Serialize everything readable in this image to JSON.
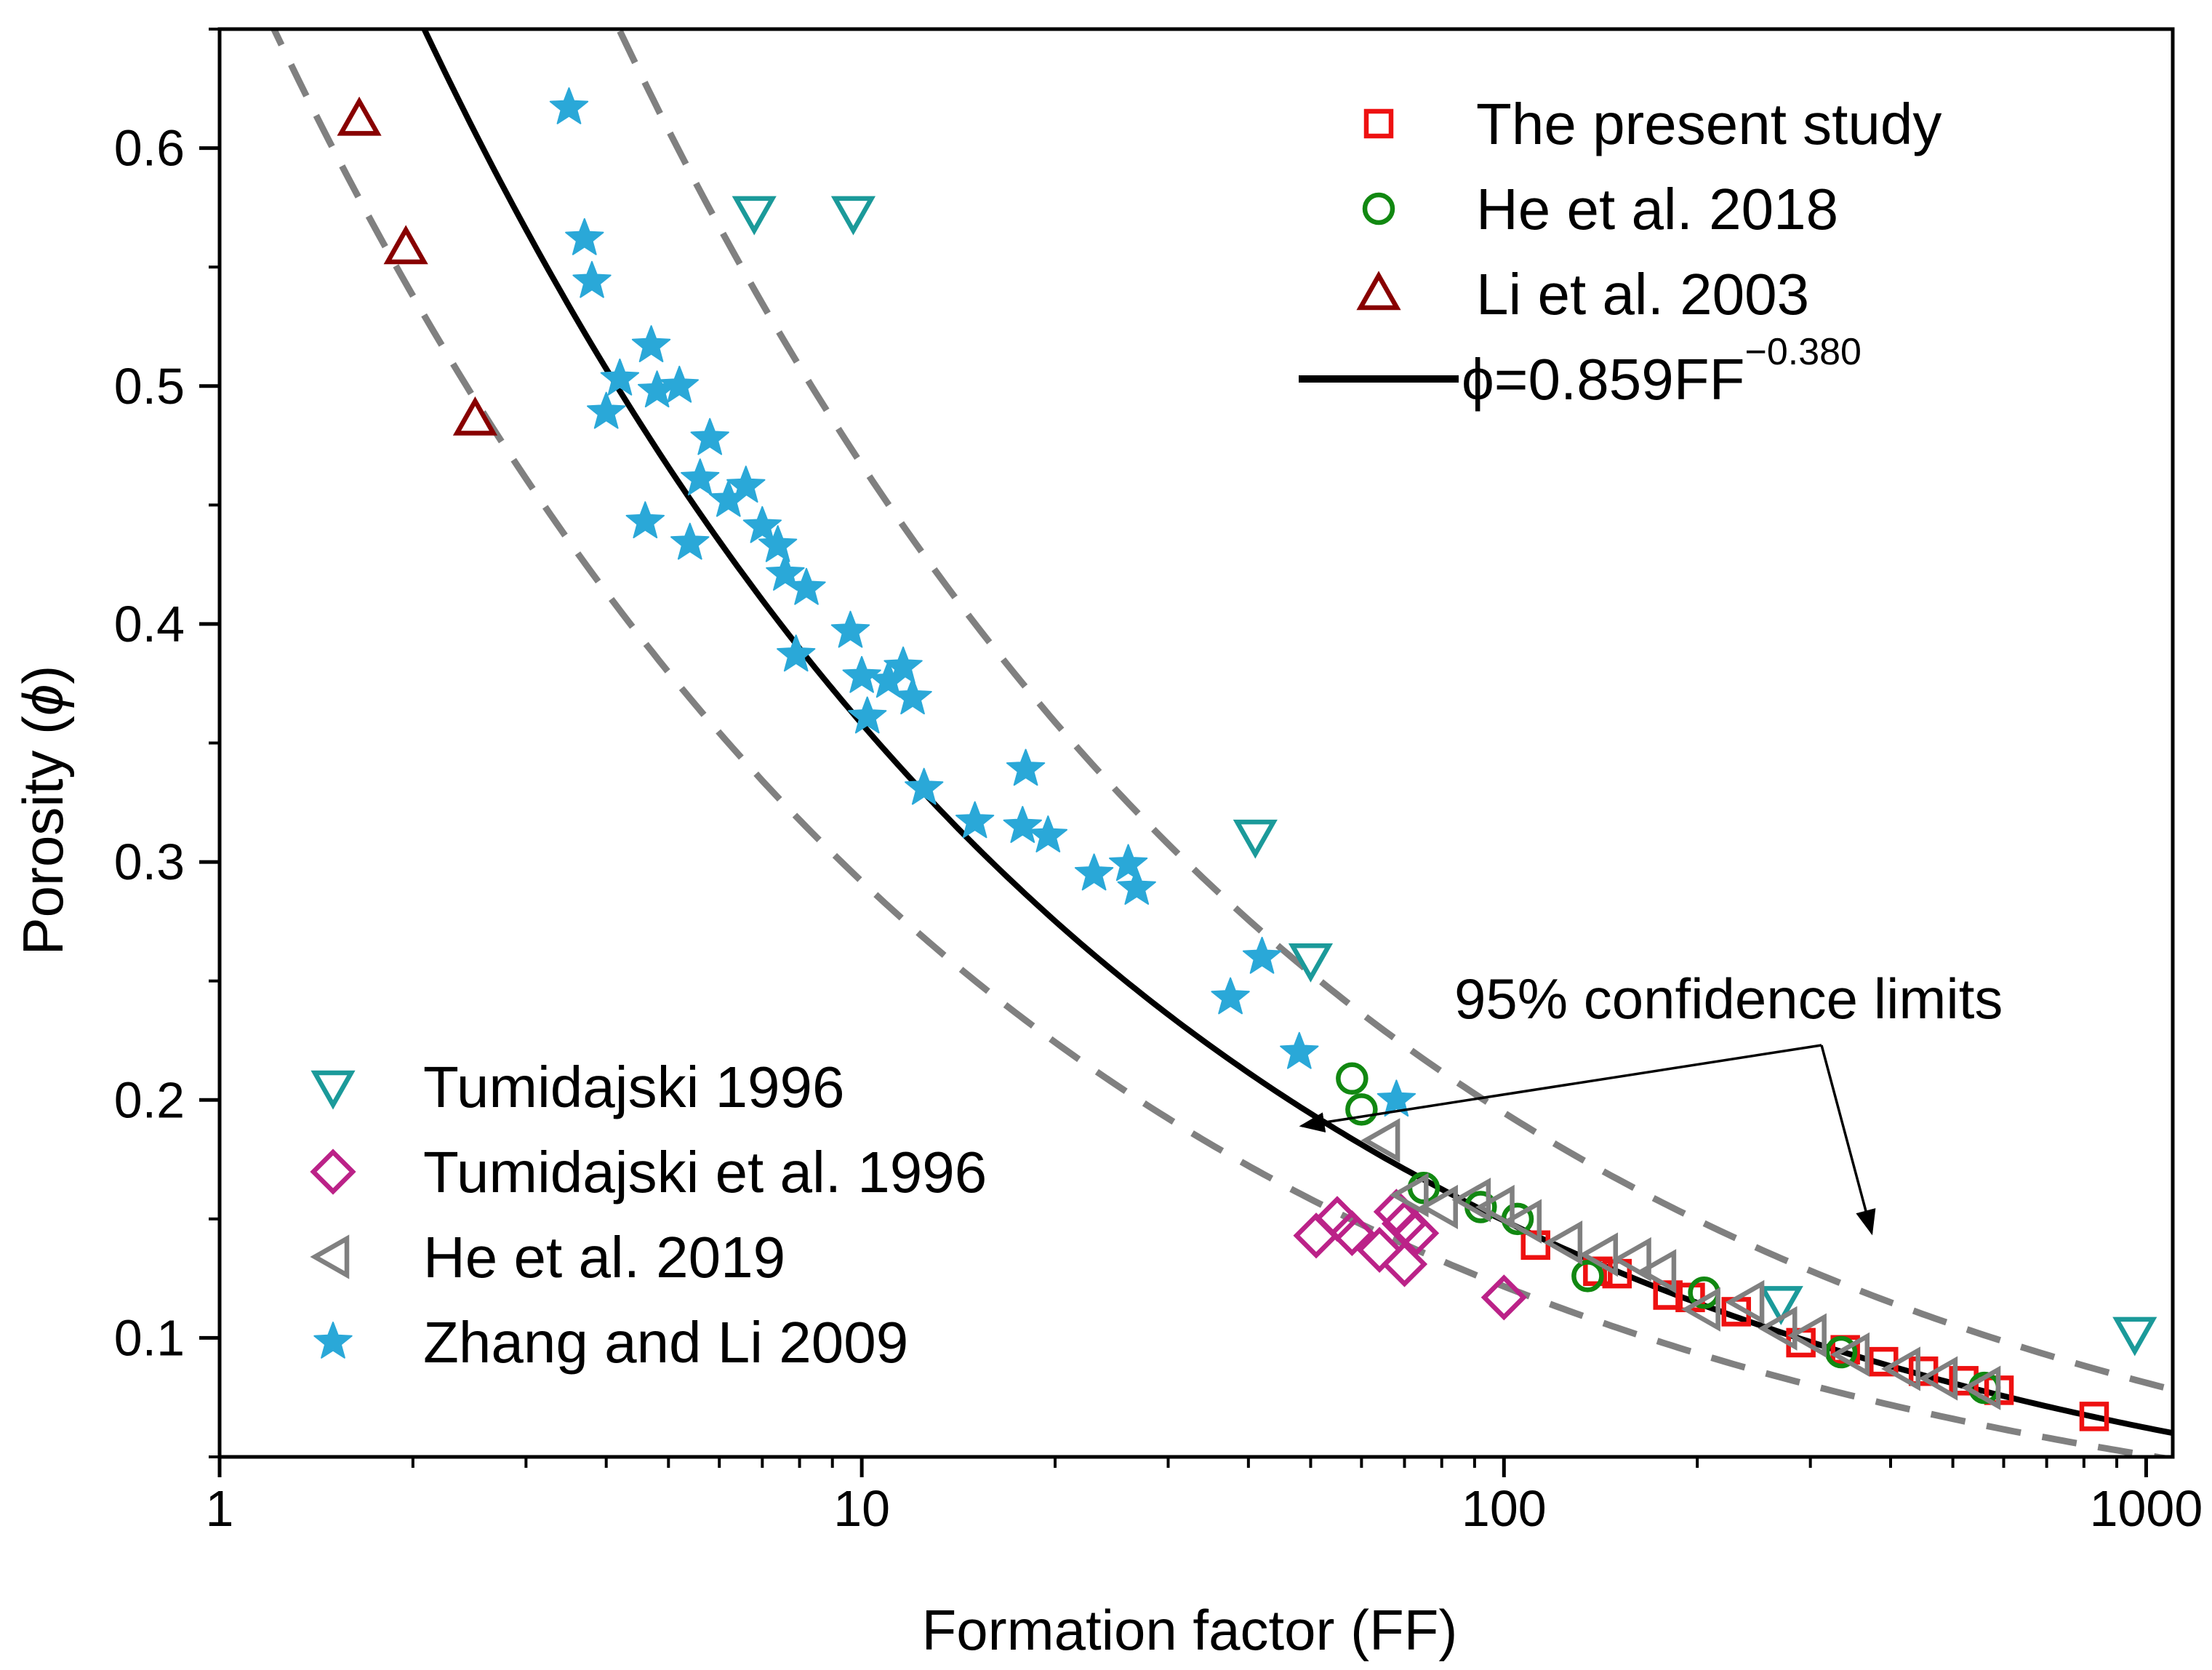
{
  "chart_data": {
    "type": "scatter",
    "xscale": "log",
    "xlim": [
      1,
      1100
    ],
    "ylim": [
      0.05,
      0.65
    ],
    "xlabel": "Formation factor (FF)",
    "ylabel_prefix": "Porosity (",
    "ylabel_symbol": "ϕ",
    "ylabel_suffix": ")",
    "x_ticks": [
      {
        "value": 1,
        "label": "1"
      },
      {
        "value": 10,
        "label": "10"
      },
      {
        "value": 100,
        "label": "100"
      },
      {
        "value": 1000,
        "label": "1000"
      }
    ],
    "y_ticks": [
      {
        "value": 0.1,
        "label": "0.1"
      },
      {
        "value": 0.2,
        "label": "0.2"
      },
      {
        "value": 0.3,
        "label": "0.3"
      },
      {
        "value": 0.4,
        "label": "0.4"
      },
      {
        "value": 0.5,
        "label": "0.5"
      },
      {
        "value": 0.6,
        "label": "0.6"
      }
    ],
    "fit": {
      "a": 0.859,
      "b": -0.38,
      "label_main": "ϕ=0.859FF",
      "label_exp": "−0.380",
      "color": "#000000"
    },
    "confidence_upper": {
      "a": 1.12,
      "b": -0.38
    },
    "confidence_lower": {
      "a": 0.7,
      "b": -0.38
    },
    "confidence_color": "#808080",
    "annotation": "95% confidence limits",
    "series": [
      {
        "name": "The present study",
        "marker": "square",
        "color": "#ee1111",
        "points": [
          [
            112,
            0.139
          ],
          [
            140,
            0.128
          ],
          [
            150,
            0.127
          ],
          [
            180,
            0.118
          ],
          [
            195,
            0.117
          ],
          [
            230,
            0.111
          ],
          [
            290,
            0.098
          ],
          [
            340,
            0.095
          ],
          [
            390,
            0.09
          ],
          [
            450,
            0.086
          ],
          [
            520,
            0.082
          ],
          [
            590,
            0.078
          ],
          [
            830,
            0.067
          ]
        ]
      },
      {
        "name": "He et al. 2018",
        "marker": "circle",
        "color": "#118811",
        "points": [
          [
            58,
            0.209
          ],
          [
            60,
            0.196
          ],
          [
            75,
            0.163
          ],
          [
            92,
            0.155
          ],
          [
            105,
            0.15
          ],
          [
            135,
            0.126
          ],
          [
            205,
            0.119
          ],
          [
            335,
            0.094
          ],
          [
            560,
            0.079
          ]
        ]
      },
      {
        "name": "Li et al. 2003",
        "marker": "triangle-up",
        "color": "#880000",
        "points": [
          [
            1.65,
            0.612
          ],
          [
            1.95,
            0.558
          ],
          [
            2.5,
            0.486
          ]
        ]
      },
      {
        "name": "Tumidajski 1996",
        "marker": "triangle-down",
        "color": "#1b9a9a",
        "points": [
          [
            6.8,
            0.573
          ],
          [
            9.7,
            0.573
          ],
          [
            41,
            0.311
          ],
          [
            50,
            0.259
          ],
          [
            270,
            0.115
          ],
          [
            960,
            0.102
          ]
        ]
      },
      {
        "name": "Tumidajski et al. 1996",
        "marker": "diamond",
        "color": "#bb2288",
        "points": [
          [
            51,
            0.143
          ],
          [
            55,
            0.15
          ],
          [
            58,
            0.144
          ],
          [
            64,
            0.137
          ],
          [
            68,
            0.153
          ],
          [
            70,
            0.148
          ],
          [
            73,
            0.144
          ],
          [
            70,
            0.131
          ],
          [
            100,
            0.117
          ]
        ]
      },
      {
        "name": "He et al. 2019",
        "marker": "triangle-left",
        "color": "#808080",
        "points": [
          [
            65,
            0.183
          ],
          [
            72,
            0.16
          ],
          [
            80,
            0.155
          ],
          [
            90,
            0.158
          ],
          [
            98,
            0.155
          ],
          [
            108,
            0.149
          ],
          [
            125,
            0.14
          ],
          [
            142,
            0.135
          ],
          [
            160,
            0.133
          ],
          [
            175,
            0.128
          ],
          [
            205,
            0.112
          ],
          [
            240,
            0.115
          ],
          [
            270,
            0.104
          ],
          [
            300,
            0.101
          ],
          [
            350,
            0.093
          ],
          [
            420,
            0.087
          ],
          [
            480,
            0.083
          ],
          [
            560,
            0.079
          ]
        ]
      },
      {
        "name": "Zhang and Li 2009",
        "marker": "star",
        "color": "#2aa8d8",
        "points": [
          [
            3.5,
            0.617
          ],
          [
            3.7,
            0.562
          ],
          [
            3.8,
            0.544
          ],
          [
            4.0,
            0.489
          ],
          [
            4.2,
            0.503
          ],
          [
            4.6,
            0.443
          ],
          [
            4.7,
            0.517
          ],
          [
            4.8,
            0.498
          ],
          [
            5.2,
            0.5
          ],
          [
            5.4,
            0.434
          ],
          [
            5.8,
            0.478
          ],
          [
            5.6,
            0.461
          ],
          [
            6.2,
            0.452
          ],
          [
            6.6,
            0.458
          ],
          [
            7.0,
            0.441
          ],
          [
            7.4,
            0.433
          ],
          [
            7.6,
            0.421
          ],
          [
            8.2,
            0.415
          ],
          [
            7.9,
            0.387
          ],
          [
            9.6,
            0.397
          ],
          [
            10.0,
            0.378
          ],
          [
            10.2,
            0.361
          ],
          [
            11.0,
            0.376
          ],
          [
            11.6,
            0.382
          ],
          [
            12.0,
            0.369
          ],
          [
            12.5,
            0.331
          ],
          [
            15.0,
            0.317
          ],
          [
            18.0,
            0.339
          ],
          [
            17.8,
            0.315
          ],
          [
            19.5,
            0.311
          ],
          [
            23.0,
            0.295
          ],
          [
            26.0,
            0.299
          ],
          [
            26.8,
            0.289
          ],
          [
            37.5,
            0.243
          ],
          [
            42.0,
            0.26
          ],
          [
            48.0,
            0.22
          ],
          [
            68.0,
            0.2
          ]
        ]
      }
    ],
    "legend_top_right": [
      "The present study",
      "He et al. 2018",
      "Li et al. 2003"
    ],
    "legend_bottom_left": [
      "Tumidajski 1996",
      "Tumidajski et al. 1996",
      "He et al. 2019",
      "Zhang and Li 2009"
    ]
  }
}
